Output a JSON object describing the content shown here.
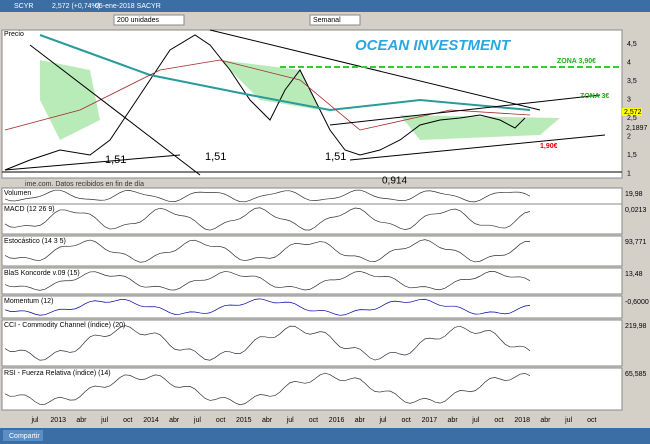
{
  "window": {
    "title": "SCYR",
    "quote": "2,572 (+0,74%)",
    "date": "05-ene-2018 SACYR"
  },
  "toolbar": {
    "range": "200 unidades",
    "period": "Semanal"
  },
  "price_panel": {
    "label": "Precio",
    "watermark": "OCEAN INVESTMENT",
    "zone_high": "ZONA 3,90€",
    "zone_mid": "ZONA 3€",
    "zone_low": "1,90€",
    "supports": [
      "1,51",
      "1,51",
      "1,51"
    ],
    "low": "0,914",
    "source": "ime.com. Datos recibidos en fin de día",
    "axis": [
      "4,5",
      "4",
      "3,5",
      "3",
      "2,5",
      "2",
      "1,5",
      "1"
    ],
    "last": "2,572",
    "level": "2,1897"
  },
  "panels": [
    {
      "label": "Volumen",
      "value": "19,98"
    },
    {
      "label": "MACD (12 26 9)",
      "value": "0,0213"
    },
    {
      "label": "Estocástico (14 3 5)",
      "value": "93,771"
    },
    {
      "label": "BlaS Koncorde v.09 (15)",
      "value": "13,48"
    },
    {
      "label": "Momentum (12)",
      "value": "-0,6000"
    },
    {
      "label": "CCI - Commodity Channel (índice) (20)",
      "value": "219,98"
    },
    {
      "label": "RSI - Fuerza Relativa (índice) (14)",
      "value": "65,585"
    }
  ],
  "x_axis": [
    "jul",
    "2013",
    "abr",
    "jul",
    "oct",
    "2014",
    "abr",
    "jul",
    "oct",
    "2015",
    "abr",
    "jul",
    "oct",
    "2016",
    "abr",
    "jul",
    "oct",
    "2017",
    "abr",
    "jul",
    "oct",
    "2018",
    "abr",
    "jul",
    "oct"
  ],
  "footer": {
    "share": "Compartir"
  }
}
